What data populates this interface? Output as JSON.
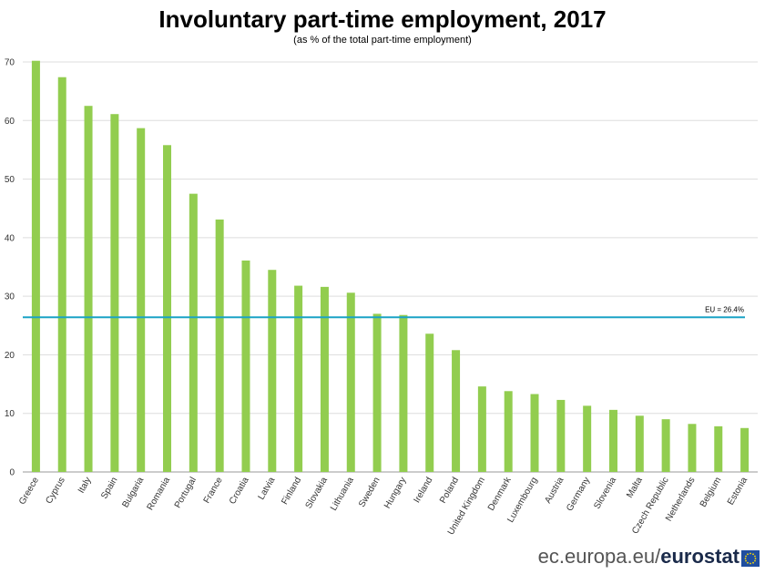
{
  "chart_data": {
    "type": "bar",
    "title": "Involuntary part-time employment, 2017",
    "subtitle": "(as % of the total part-time employment)",
    "categories": [
      "Greece",
      "Cyprus",
      "Italy",
      "Spain",
      "Bulgaria",
      "Romania",
      "Portugal",
      "France",
      "Croatia",
      "Latvia",
      "Finland",
      "Slovakia",
      "Lithuania",
      "Sweden",
      "Hungary",
      "Ireland",
      "Poland",
      "United Kingdom",
      "Denmark",
      "Luxembourg",
      "Austria",
      "Germany",
      "Slovenia",
      "Malta",
      "Czech Republic",
      "Netherlands",
      "Belgium",
      "Estonia"
    ],
    "values": [
      70.2,
      67.4,
      62.5,
      61.1,
      58.7,
      55.8,
      47.5,
      43.1,
      36.1,
      34.5,
      31.8,
      31.6,
      30.6,
      27.0,
      26.8,
      23.6,
      20.8,
      14.6,
      13.8,
      13.3,
      12.3,
      11.3,
      10.6,
      9.6,
      9.0,
      8.2,
      7.8,
      7.5
    ],
    "ylim": [
      0,
      70
    ],
    "yticks": [
      0,
      10,
      20,
      30,
      40,
      50,
      60,
      70
    ],
    "reference_line": {
      "value": 26.4,
      "label": "EU = 26.4%"
    },
    "colors": {
      "bar": "#92cd4f",
      "reference_line": "#1ba3c6",
      "grid": "#dddddd"
    },
    "grid": true
  },
  "branding": {
    "site": "ec.europa.eu/",
    "name": "eurostat",
    "flag_icon": "eu-flag-icon"
  }
}
